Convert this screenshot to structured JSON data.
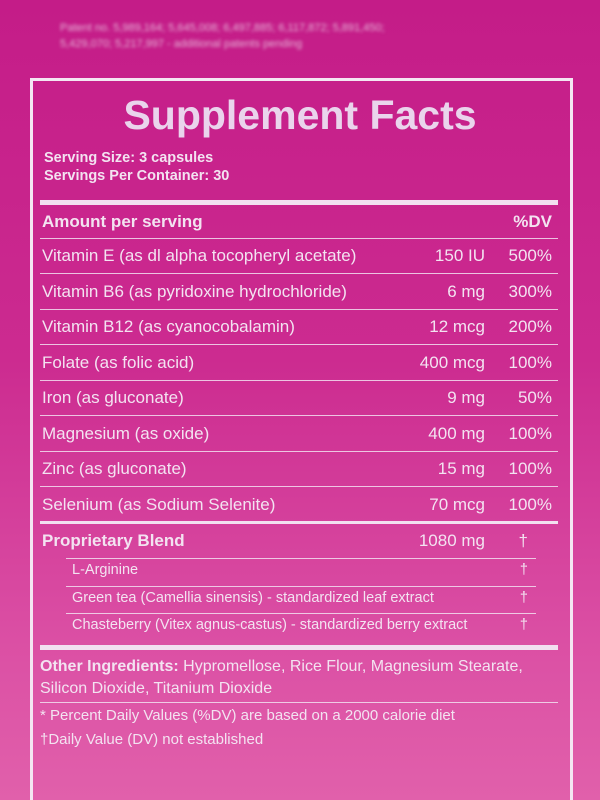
{
  "patent_note": [
    "Patent no. 5,989,164; 5,645,008; 6,497,885; 6,117,872; 5,891,450;",
    "5,429,070; 5,217,997 - additional patents pending"
  ],
  "title": "Supplement Facts",
  "serving_size": "Serving Size: 3 capsules",
  "servings_per_container": "Servings Per Container: 30",
  "table": {
    "header": [
      "Amount per serving",
      "%DV"
    ],
    "rows": [
      [
        "Vitamin E (as dl alpha tocopheryl acetate)",
        "150 IU",
        "500%"
      ],
      [
        "Vitamin B6 (as pyridoxine hydrochloride)",
        "6 mg",
        "300%"
      ],
      [
        "Vitamin B12 (as cyanocobalamin)",
        "12 mcg",
        "200%"
      ],
      [
        "Folate (as folic acid)",
        "400 mcg",
        "100%"
      ],
      [
        "Iron (as gluconate)",
        "9 mg",
        "50%"
      ],
      [
        "Magnesium (as oxide)",
        "400 mg",
        "100%"
      ],
      [
        "Zinc (as gluconate)",
        "15 mg",
        "100%"
      ],
      [
        "Selenium (as Sodium Selenite)",
        "70 mcg",
        "100%"
      ]
    ]
  },
  "blend": {
    "name": "Proprietary Blend",
    "amount": "1080 mg",
    "dv": "†",
    "items": [
      [
        "L-Arginine",
        "†"
      ],
      [
        "Green tea (Camellia sinensis) - standardized leaf extract",
        "†"
      ],
      [
        "Chasteberry (Vitex agnus-castus) - standardized berry extract",
        "†"
      ]
    ]
  },
  "other_ingredients": {
    "label": "Other Ingredients:",
    "text": "Hypromellose, Rice Flour, Magnesium Stearate, Silicon Dioxide, Titanium Dioxide"
  },
  "footnotes": [
    "* Percent Daily Values (%DV) are based on a 2000 calorie diet",
    "†Daily Value (DV) not established"
  ]
}
